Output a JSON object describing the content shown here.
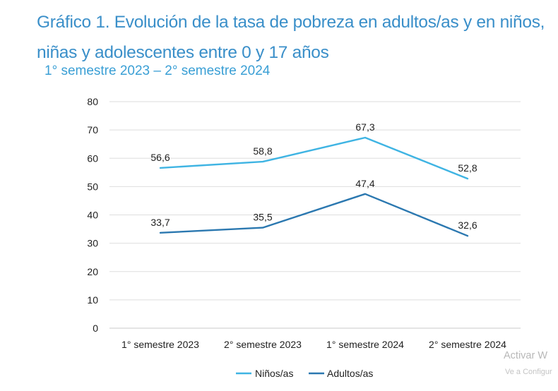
{
  "chart_data": {
    "type": "line",
    "title": "Gráfico 1. Evolución de la tasa de pobreza en adultos/as y en niños, niñas y adolescentes entre 0 y 17 años",
    "subtitle": "1° semestre 2023 – 2° semestre 2024",
    "xlabel": "",
    "ylabel": "",
    "categories": [
      "1° semestre 2023",
      "2° semestre 2023",
      "1° semestre 2024",
      "2° semestre 2024"
    ],
    "ylim": [
      0,
      80
    ],
    "yticks": [
      0,
      10,
      20,
      30,
      40,
      50,
      60,
      70,
      80
    ],
    "grid": "horizontal",
    "legend": "bottom",
    "series": [
      {
        "name": "Niños/as",
        "values": [
          56.6,
          58.8,
          67.3,
          52.8
        ],
        "labels": [
          "56,6",
          "58,8",
          "67,3",
          "52,8"
        ],
        "color": "#3fb4e3"
      },
      {
        "name": "Adultos/as",
        "values": [
          33.7,
          35.5,
          47.4,
          32.6
        ],
        "labels": [
          "33,7",
          "35,5",
          "47,4",
          "32,6"
        ],
        "color": "#2b78b0"
      }
    ]
  },
  "watermark": {
    "line1": "Activar W",
    "line2": "Ve a Configur"
  }
}
